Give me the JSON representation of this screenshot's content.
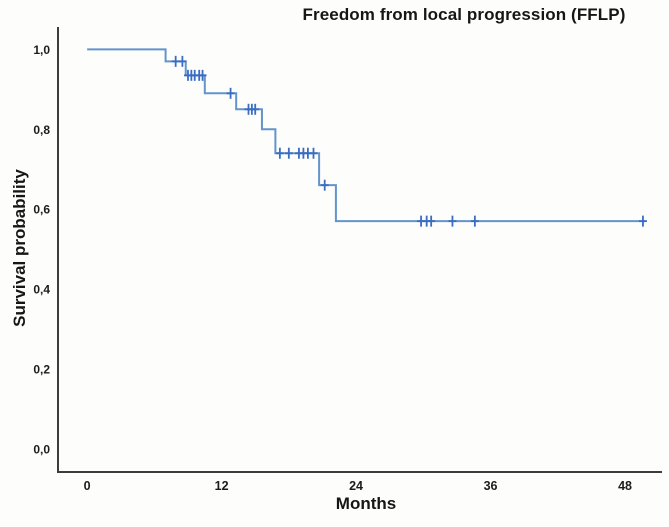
{
  "figure_title": "Freedom from local progression (FFLP)",
  "colors": {
    "curve": "#6394cc",
    "censor": "#3a6cc2",
    "axis": "#3c3c3c",
    "text": "#1c1c1c",
    "background": "#fdfdfb"
  },
  "chart_data": {
    "type": "line",
    "subtype": "kaplan_meier_step_curve",
    "title": "Freedom from local progression (FFLP)",
    "xlabel": "Months",
    "ylabel": "Survival probability",
    "xlim": [
      -2.6,
      51.3
    ],
    "ylim": [
      -0.058,
      1.056
    ],
    "grid": false,
    "legend": "none",
    "x_ticks": [
      {
        "value": 0,
        "label": "0"
      },
      {
        "value": 12,
        "label": "12"
      },
      {
        "value": 24,
        "label": "24"
      },
      {
        "value": 36,
        "label": "36"
      },
      {
        "value": 48,
        "label": "48"
      }
    ],
    "y_ticks": [
      {
        "value": 0.0,
        "label": "0,0"
      },
      {
        "value": 0.2,
        "label": "0,2"
      },
      {
        "value": 0.4,
        "label": "0,4"
      },
      {
        "value": 0.6,
        "label": "0,6"
      },
      {
        "value": 0.8,
        "label": "0,8"
      },
      {
        "value": 1.0,
        "label": "1,0"
      }
    ],
    "steps": [
      {
        "t": 0.0,
        "s": 1.0
      },
      {
        "t": 7.0,
        "s": 0.97
      },
      {
        "t": 8.8,
        "s": 0.935
      },
      {
        "t": 10.5,
        "s": 0.89
      },
      {
        "t": 13.3,
        "s": 0.85
      },
      {
        "t": 15.6,
        "s": 0.8
      },
      {
        "t": 16.8,
        "s": 0.74
      },
      {
        "t": 20.7,
        "s": 0.66
      },
      {
        "t": 22.2,
        "s": 0.57
      }
    ],
    "curve_end_t": 49.8,
    "censor_marks": [
      {
        "t": 7.9,
        "s": 0.97
      },
      {
        "t": 8.5,
        "s": 0.97
      },
      {
        "t": 9.0,
        "s": 0.935
      },
      {
        "t": 9.3,
        "s": 0.935
      },
      {
        "t": 9.6,
        "s": 0.935
      },
      {
        "t": 10.0,
        "s": 0.935
      },
      {
        "t": 10.3,
        "s": 0.935
      },
      {
        "t": 12.8,
        "s": 0.89
      },
      {
        "t": 14.4,
        "s": 0.85
      },
      {
        "t": 14.7,
        "s": 0.85
      },
      {
        "t": 15.0,
        "s": 0.85
      },
      {
        "t": 17.2,
        "s": 0.74
      },
      {
        "t": 18.0,
        "s": 0.74
      },
      {
        "t": 18.9,
        "s": 0.74
      },
      {
        "t": 19.3,
        "s": 0.74
      },
      {
        "t": 19.7,
        "s": 0.74
      },
      {
        "t": 20.2,
        "s": 0.74
      },
      {
        "t": 21.2,
        "s": 0.66
      },
      {
        "t": 29.8,
        "s": 0.57
      },
      {
        "t": 30.3,
        "s": 0.57
      },
      {
        "t": 30.7,
        "s": 0.57
      },
      {
        "t": 32.6,
        "s": 0.57
      },
      {
        "t": 34.6,
        "s": 0.57
      },
      {
        "t": 49.6,
        "s": 0.57
      }
    ]
  }
}
